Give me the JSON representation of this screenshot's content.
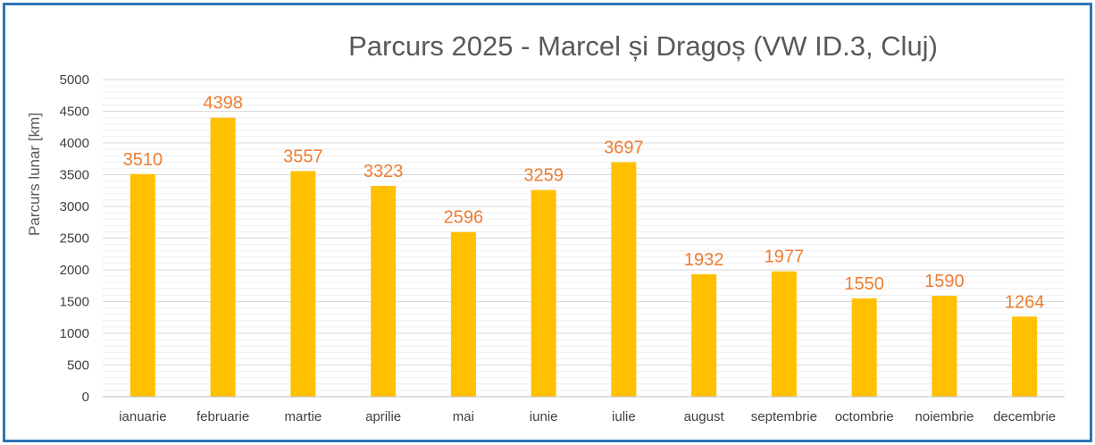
{
  "chart_data": {
    "type": "bar",
    "title": "Parcurs 2025 - Marcel și Dragoș (VW ID.3, Cluj)",
    "ylabel": "Parcurs lunar [km]",
    "xlabel": "",
    "categories": [
      "ianuarie",
      "februarie",
      "martie",
      "aprilie",
      "mai",
      "iunie",
      "iulie",
      "august",
      "septembrie",
      "octombrie",
      "noiembrie",
      "decembrie"
    ],
    "values": [
      3510,
      4398,
      3557,
      3323,
      2596,
      3259,
      3697,
      1932,
      1977,
      1550,
      1590,
      1264
    ],
    "ylim": [
      0,
      5000
    ],
    "yticks": [
      0,
      500,
      1000,
      1500,
      2000,
      2500,
      3000,
      3500,
      4000,
      4500,
      5000
    ],
    "grid": true,
    "legend": "none",
    "colors": {
      "bar": "#ffc000",
      "data_label": "#ed7d31",
      "border": "#2e75b6"
    }
  }
}
